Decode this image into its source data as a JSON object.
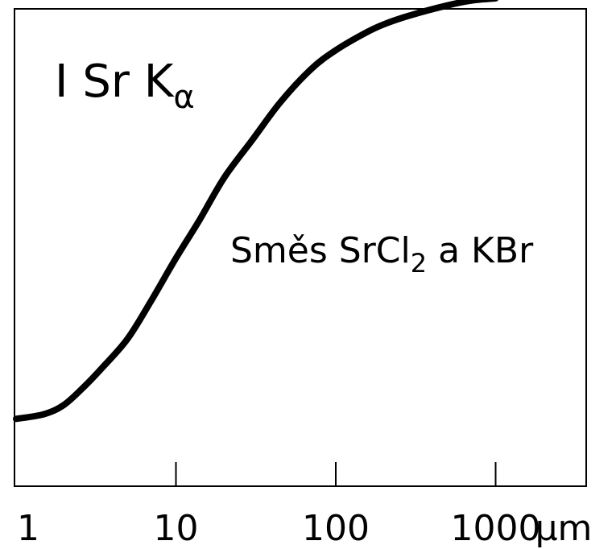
{
  "chart_data": {
    "type": "line",
    "x_scale": "log",
    "xlim": [
      1,
      2000
    ],
    "ylim": [
      0,
      1
    ],
    "grid": false,
    "y_ticks": false,
    "xtick_values": [
      1,
      10,
      100,
      1000
    ],
    "xtick_labels": [
      "1",
      "10",
      "100",
      "1000"
    ],
    "x_unit": "µm",
    "y_label": {
      "main": "I Sr K",
      "sub": "α"
    },
    "annotation": {
      "pre": "Směs SrCl",
      "sub": "2",
      "post": " a KBr"
    },
    "series": [
      {
        "x": [
          1,
          1.5,
          2,
          2.7,
          3.5,
          5,
          7,
          10,
          14,
          20,
          30,
          45,
          70,
          100,
          150,
          200,
          300,
          500,
          700,
          1000
        ],
        "y": [
          0.1,
          0.11,
          0.13,
          0.17,
          0.21,
          0.27,
          0.35,
          0.44,
          0.52,
          0.61,
          0.69,
          0.77,
          0.84,
          0.88,
          0.915,
          0.935,
          0.955,
          0.975,
          0.985,
          0.99
        ]
      }
    ],
    "colors": {
      "line": "#000000",
      "axis": "#000000"
    }
  }
}
